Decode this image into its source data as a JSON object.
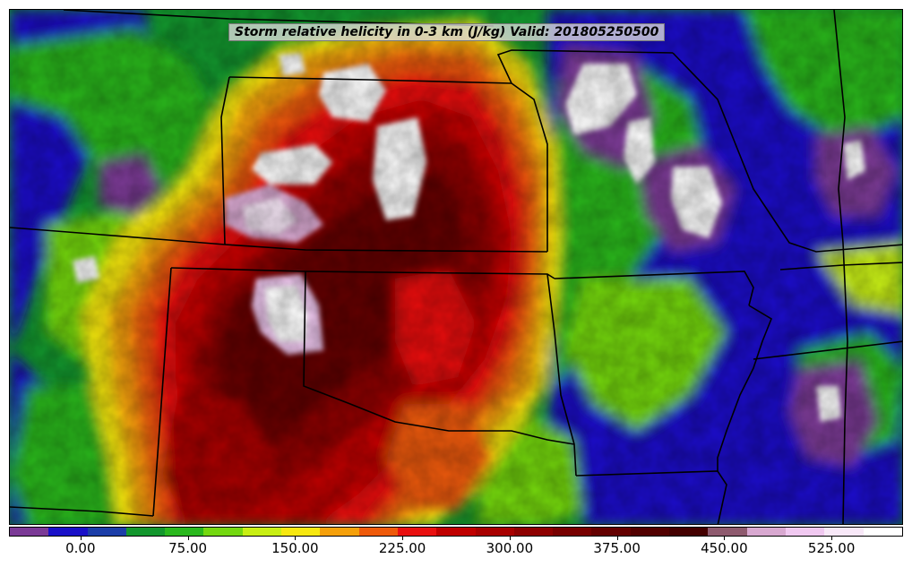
{
  "title": "Storm relative helicity in 0-3 km (J/kg) Valid: 201805250500",
  "colorbar": {
    "colors": [
      "#7b3a96",
      "#1a10c8",
      "#1c3ea8",
      "#13972e",
      "#2ab81e",
      "#74d810",
      "#c8ef14",
      "#f7e810",
      "#f5a00a",
      "#ee5a0a",
      "#e91010",
      "#c00000",
      "#a80000",
      "#8e0000",
      "#780000",
      "#640000",
      "#520000",
      "#440000",
      "#8e5a6e",
      "#d8a8d0",
      "#f0c8f0",
      "#f8e8f8",
      "#ffffff"
    ],
    "tick_values": [
      0,
      75,
      150,
      225,
      300,
      375,
      450,
      525
    ],
    "tick_labels": [
      "0.00",
      "75.00",
      "150.00",
      "225.00",
      "300.00",
      "375.00",
      "450.00",
      "525.00"
    ],
    "min": -50,
    "max": 575
  }
}
